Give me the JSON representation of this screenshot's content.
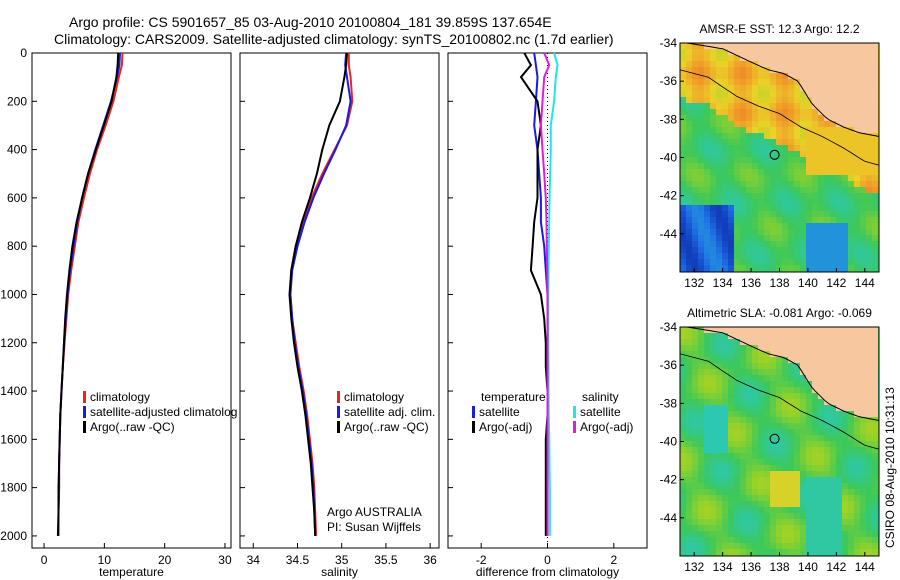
{
  "header": {
    "line1": "Argo profile: CS 5901657_85 03-Aug-2010 20100804_181 39.859S 137.654E",
    "line2": "Climatology: CARS2009. Satellite-adjusted climatology: synTS_20100802.nc (1.7d earlier)"
  },
  "footer_vertical": "CSIRO 08-Aug-2010 10:31:13",
  "colors": {
    "climatology": "#e8251e",
    "satellite": "#1a1ae6",
    "argo": "#000000",
    "sal_satellite": "#22e6e6",
    "sal_argo": "#e41ad9",
    "land": "#f7c8a0"
  },
  "chart_data": [
    {
      "id": "temperature-panel",
      "type": "line",
      "xlabel": "temperature",
      "xlim": [
        -2,
        31
      ],
      "ylim": [
        0,
        2050
      ],
      "y_reversed": true,
      "xticks": [
        0,
        10,
        20,
        30
      ],
      "yticks": [
        0,
        200,
        400,
        600,
        800,
        1000,
        1200,
        1400,
        1600,
        1800,
        2000
      ],
      "legend": [
        "climatology",
        "satellite-adjusted climatolog",
        "Argo(..raw -QC)"
      ],
      "series": [
        {
          "name": "climatology",
          "color": "#e8251e",
          "x": [
            13.0,
            12.9,
            12.4,
            11.5,
            10.2,
            8.8,
            7.6,
            6.6,
            5.7,
            5.1,
            4.5,
            4.0,
            3.7,
            3.4,
            3.1,
            2.9,
            2.7,
            2.6,
            2.5,
            2.5,
            2.4,
            2.4
          ],
          "y": [
            0,
            50,
            100,
            200,
            300,
            400,
            500,
            600,
            700,
            800,
            900,
            1000,
            1100,
            1200,
            1300,
            1400,
            1500,
            1600,
            1700,
            1800,
            1900,
            2000
          ]
        },
        {
          "name": "satellite-adjusted climatolog",
          "color": "#1a1ae6",
          "x": [
            12.6,
            12.5,
            12.1,
            11.1,
            9.8,
            8.5,
            7.3,
            6.3,
            5.5,
            4.9,
            4.3,
            3.9,
            3.6,
            3.3,
            3.1,
            2.9,
            2.7,
            2.6,
            2.5,
            2.5,
            2.4,
            2.4
          ],
          "y": [
            0,
            50,
            100,
            200,
            300,
            400,
            500,
            600,
            700,
            800,
            900,
            1000,
            1100,
            1200,
            1300,
            1400,
            1500,
            1600,
            1700,
            1800,
            1900,
            2000
          ]
        },
        {
          "name": "Argo(..raw -QC)",
          "color": "#000000",
          "x": [
            12.3,
            12.2,
            12.0,
            11.2,
            9.9,
            8.6,
            7.3,
            6.3,
            5.4,
            4.7,
            4.2,
            3.8,
            3.5,
            3.3,
            3.1,
            2.9,
            2.7,
            2.6,
            2.5,
            2.4,
            2.4,
            2.3
          ],
          "y": [
            0,
            50,
            100,
            200,
            300,
            400,
            500,
            600,
            700,
            800,
            900,
            1000,
            1100,
            1200,
            1300,
            1400,
            1500,
            1600,
            1700,
            1800,
            1900,
            2000
          ]
        }
      ]
    },
    {
      "id": "salinity-panel",
      "type": "line",
      "xlabel": "salinity",
      "xlim": [
        33.85,
        36.1
      ],
      "ylim": [
        0,
        2050
      ],
      "y_reversed": true,
      "xticks": [
        34,
        34.5,
        35,
        35.5,
        36
      ],
      "yticks": [
        0,
        200,
        400,
        600,
        800,
        1000,
        1200,
        1400,
        1600,
        1800,
        2000
      ],
      "legend": [
        "climatology",
        "satellite adj. clim.",
        "Argo(..raw -QC)"
      ],
      "annotations": [
        "Argo AUSTRALIA",
        "PI: Susan Wijffels"
      ],
      "series": [
        {
          "name": "climatology",
          "color": "#e8251e",
          "x": [
            35.08,
            35.08,
            35.1,
            35.12,
            35.06,
            34.92,
            34.78,
            34.66,
            34.56,
            34.48,
            34.43,
            34.42,
            34.44,
            34.48,
            34.52,
            34.57,
            34.61,
            34.64,
            34.67,
            34.69,
            34.7,
            34.71
          ],
          "y": [
            0,
            50,
            100,
            200,
            300,
            400,
            500,
            600,
            700,
            800,
            900,
            1000,
            1100,
            1200,
            1300,
            1400,
            1500,
            1600,
            1700,
            1800,
            1900,
            2000
          ]
        },
        {
          "name": "satellite adj. clim.",
          "color": "#1a1ae6",
          "x": [
            35.05,
            35.04,
            35.06,
            35.1,
            35.05,
            34.93,
            34.8,
            34.68,
            34.58,
            34.5,
            34.44,
            34.42,
            34.44,
            34.47,
            34.51,
            34.56,
            34.6,
            34.63,
            34.66,
            34.68,
            34.69,
            34.7
          ],
          "y": [
            0,
            50,
            100,
            200,
            300,
            400,
            500,
            600,
            700,
            800,
            900,
            1000,
            1100,
            1200,
            1300,
            1400,
            1500,
            1600,
            1700,
            1800,
            1900,
            2000
          ]
        },
        {
          "name": "Argo(..raw -QC)",
          "color": "#000000",
          "x": [
            35.06,
            35.05,
            35.03,
            34.98,
            34.86,
            34.78,
            34.72,
            34.64,
            34.55,
            34.48,
            34.43,
            34.41,
            34.43,
            34.46,
            34.5,
            34.55,
            34.59,
            34.62,
            34.65,
            34.67,
            34.69,
            34.7
          ],
          "y": [
            0,
            50,
            100,
            200,
            300,
            400,
            500,
            600,
            700,
            800,
            900,
            1000,
            1100,
            1200,
            1300,
            1400,
            1500,
            1600,
            1700,
            1800,
            1900,
            2000
          ]
        }
      ]
    },
    {
      "id": "difference-panel",
      "type": "line",
      "xlabel": "difference from climatology",
      "xlim": [
        -3,
        3
      ],
      "ylim": [
        0,
        2050
      ],
      "y_reversed": true,
      "xticks": [
        -2,
        0,
        2
      ],
      "yticks": [
        0,
        200,
        400,
        600,
        800,
        1000,
        1200,
        1400,
        1600,
        1800,
        2000
      ],
      "legend_left_title": "temperature",
      "legend_left": [
        "satellite",
        "Argo(-adj)"
      ],
      "legend_right_title": "salinity",
      "legend_right": [
        "satellite",
        "Argo(-adj)"
      ],
      "series": [
        {
          "name": "temperature satellite",
          "color": "#1a1ae6",
          "x": [
            -0.4,
            -0.35,
            -0.3,
            -0.35,
            -0.4,
            -0.3,
            -0.25,
            -0.2,
            -0.2,
            -0.1,
            -0.05,
            0,
            0,
            0,
            0,
            0,
            0,
            0,
            0,
            0,
            0
          ],
          "y": [
            0,
            50,
            100,
            200,
            300,
            400,
            500,
            600,
            700,
            800,
            900,
            1000,
            1100,
            1200,
            1300,
            1400,
            1500,
            1600,
            1700,
            1800,
            2000
          ]
        },
        {
          "name": "temperature Argo(-adj)",
          "color": "#000000",
          "x": [
            -0.7,
            -0.5,
            -0.8,
            -0.3,
            -0.2,
            -0.3,
            -0.3,
            -0.3,
            -0.4,
            -0.45,
            -0.5,
            -0.2,
            -0.1,
            -0.05,
            -0.05,
            0,
            0,
            -0.05,
            -0.05,
            -0.05,
            -0.05
          ],
          "y": [
            0,
            50,
            100,
            200,
            300,
            400,
            500,
            600,
            700,
            800,
            900,
            1000,
            1100,
            1200,
            1300,
            1400,
            1500,
            1600,
            1700,
            1800,
            2000
          ]
        },
        {
          "name": "salinity satellite",
          "color": "#22e6e6",
          "x": [
            0.2,
            0.3,
            0.25,
            0.2,
            0.1,
            0.1,
            0.08,
            0.06,
            0.05,
            0.04,
            0.03,
            0.02,
            0.02,
            0.02,
            0.03,
            0.03,
            0.04,
            0.05,
            0.06,
            0.07,
            0.07
          ],
          "y": [
            0,
            50,
            100,
            200,
            300,
            400,
            500,
            600,
            700,
            800,
            900,
            1000,
            1100,
            1200,
            1300,
            1400,
            1500,
            1600,
            1700,
            1800,
            2000
          ]
        },
        {
          "name": "salinity Argo(-adj)",
          "color": "#e41ad9",
          "x": [
            -0.1,
            0.05,
            -0.1,
            -0.15,
            -0.2,
            -0.15,
            -0.1,
            -0.05,
            -0.03,
            -0.02,
            -0.01,
            0,
            0,
            0,
            0,
            0,
            0,
            0,
            0,
            0,
            0
          ],
          "y": [
            0,
            50,
            100,
            200,
            300,
            400,
            500,
            600,
            700,
            800,
            900,
            1000,
            1100,
            1200,
            1300,
            1400,
            1500,
            1600,
            1700,
            1800,
            2000
          ]
        }
      ]
    },
    {
      "id": "sst-map",
      "type": "heatmap",
      "title": "AMSR-E SST: 12.3 Argo: 12.2",
      "xlim": [
        131,
        145
      ],
      "ylim": [
        -46,
        -34
      ],
      "xticks": [
        132,
        134,
        136,
        138,
        140,
        142,
        144
      ],
      "yticks": [
        -34,
        -36,
        -38,
        -40,
        -42,
        -44
      ],
      "marker": {
        "lon": 137.654,
        "lat": -39.859
      }
    },
    {
      "id": "sla-map",
      "type": "heatmap",
      "title": "Altimetric SLA: -0.081 Argo: -0.069",
      "xlim": [
        131,
        145
      ],
      "ylim": [
        -46,
        -34
      ],
      "xticks": [
        132,
        134,
        136,
        138,
        140,
        142,
        144
      ],
      "yticks": [
        -34,
        -36,
        -38,
        -40,
        -42,
        -44
      ],
      "marker": {
        "lon": 137.654,
        "lat": -39.859
      }
    }
  ]
}
